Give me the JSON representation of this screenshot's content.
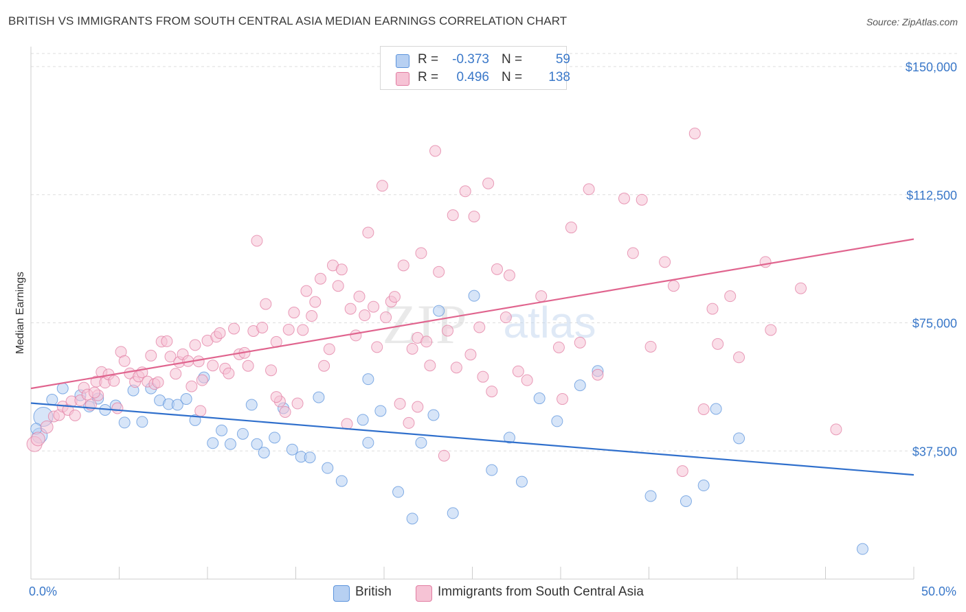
{
  "title": "BRITISH VS IMMIGRANTS FROM SOUTH CENTRAL ASIA MEDIAN EARNINGS CORRELATION CHART",
  "source": "Source: ZipAtlas.com",
  "watermark": {
    "zip": "ZIP",
    "atlas": "atlas"
  },
  "colors": {
    "british": "#5b93dc",
    "british_fill": "#b7d0f2",
    "british_line": "#2f6fcc",
    "immigrants": "#e17ca1",
    "immigrants_fill": "#f6c3d5",
    "immigrants_line": "#e0648e",
    "axis_label": "#3a78c9",
    "grid": "#dddddd"
  },
  "legend": {
    "rows": [
      {
        "r_label": "R =",
        "r_value": "-0.373",
        "n_label": "N =",
        "n_value": "59",
        "series": "british"
      },
      {
        "r_label": "R =",
        "r_value": "0.496",
        "n_label": "N =",
        "n_value": "138",
        "series": "immigrants"
      }
    ]
  },
  "bottom_legend": [
    {
      "label": "British",
      "series": "british"
    },
    {
      "label": "Immigrants from South Central Asia",
      "series": "immigrants"
    }
  ],
  "chart_data": {
    "type": "scatter",
    "title": "BRITISH VS IMMIGRANTS FROM SOUTH CENTRAL ASIA MEDIAN EARNINGS CORRELATION CHART",
    "xlabel": "",
    "ylabel": "Median Earnings",
    "xlim": [
      0,
      50
    ],
    "ylim": [
      0,
      157500
    ],
    "x_tick_labels": [
      "0.0%",
      "50.0%"
    ],
    "x_tick_label_values": [
      0,
      50
    ],
    "x_minor_ticks": [
      0,
      5,
      10,
      15,
      20,
      25,
      30,
      35,
      40,
      45,
      50
    ],
    "y_ticks": [
      37500,
      75000,
      112500,
      150000
    ],
    "y_tick_labels": [
      "$37,500",
      "$75,000",
      "$112,500",
      "$150,000"
    ],
    "grid": true,
    "legend_position": "top-center",
    "series": [
      {
        "name": "British",
        "key": "british",
        "trendline": {
          "x": [
            0,
            50
          ],
          "y": [
            51500,
            30500
          ]
        },
        "points": [
          [
            0.7,
            47500,
            28
          ],
          [
            0.5,
            42000,
            22
          ],
          [
            1.2,
            52500,
            16
          ],
          [
            1.8,
            55800,
            16
          ],
          [
            2.8,
            53800,
            16
          ],
          [
            3.3,
            50500,
            16
          ],
          [
            3.8,
            52800,
            16
          ],
          [
            4.2,
            49500,
            16
          ],
          [
            4.8,
            50800,
            16
          ],
          [
            5.3,
            45800,
            16
          ],
          [
            5.8,
            55200,
            16
          ],
          [
            6.3,
            46000,
            16
          ],
          [
            6.8,
            55800,
            16
          ],
          [
            7.3,
            52300,
            16
          ],
          [
            7.8,
            51200,
            16
          ],
          [
            8.3,
            51000,
            16
          ],
          [
            8.8,
            52700,
            16
          ],
          [
            9.3,
            46500,
            16
          ],
          [
            9.8,
            59000,
            16
          ],
          [
            10.3,
            39800,
            16
          ],
          [
            10.8,
            43500,
            16
          ],
          [
            11.3,
            39500,
            16
          ],
          [
            12.0,
            42500,
            16
          ],
          [
            12.5,
            51000,
            16
          ],
          [
            12.8,
            39500,
            16
          ],
          [
            13.2,
            37000,
            16
          ],
          [
            13.8,
            41400,
            16
          ],
          [
            14.3,
            50000,
            16
          ],
          [
            14.8,
            37900,
            16
          ],
          [
            15.3,
            35800,
            16
          ],
          [
            15.8,
            35600,
            16
          ],
          [
            16.3,
            53200,
            16
          ],
          [
            16.8,
            32500,
            16
          ],
          [
            17.6,
            28700,
            16
          ],
          [
            18.8,
            46600,
            16
          ],
          [
            19.1,
            39900,
            16
          ],
          [
            19.1,
            58500,
            16
          ],
          [
            19.8,
            49200,
            16
          ],
          [
            20.8,
            25500,
            16
          ],
          [
            21.6,
            17700,
            16
          ],
          [
            22.1,
            39900,
            16
          ],
          [
            22.8,
            48000,
            16
          ],
          [
            23.1,
            78500,
            16
          ],
          [
            23.9,
            19300,
            16
          ],
          [
            25.1,
            82900,
            16
          ],
          [
            26.1,
            31900,
            16
          ],
          [
            27.1,
            41400,
            16
          ],
          [
            27.8,
            28500,
            16
          ],
          [
            28.8,
            52900,
            16
          ],
          [
            29.8,
            46200,
            16
          ],
          [
            31.1,
            56700,
            16
          ],
          [
            32.1,
            60900,
            16
          ],
          [
            35.1,
            24300,
            16
          ],
          [
            37.1,
            22800,
            16
          ],
          [
            38.1,
            27400,
            16
          ],
          [
            38.8,
            49800,
            16
          ],
          [
            40.1,
            41200,
            16
          ],
          [
            47.1,
            8800,
            16
          ],
          [
            0.3,
            44000,
            16
          ]
        ]
      },
      {
        "name": "Immigrants from South Central Asia",
        "key": "immigrants",
        "trendline": {
          "x": [
            0,
            50
          ],
          "y": [
            55800,
            99500
          ]
        },
        "points": [
          [
            0.2,
            39500,
            22
          ],
          [
            0.4,
            41000,
            20
          ],
          [
            0.9,
            44500,
            18
          ],
          [
            1.3,
            47600,
            16
          ],
          [
            1.6,
            48000,
            16
          ],
          [
            1.8,
            50500,
            16
          ],
          [
            2.1,
            49500,
            16
          ],
          [
            2.3,
            52000,
            16
          ],
          [
            2.5,
            47900,
            16
          ],
          [
            2.8,
            52300,
            16
          ],
          [
            3.0,
            56000,
            16
          ],
          [
            3.2,
            54000,
            16
          ],
          [
            3.4,
            51000,
            16
          ],
          [
            3.7,
            57800,
            16
          ],
          [
            3.8,
            53800,
            16
          ],
          [
            4.0,
            60600,
            16
          ],
          [
            4.2,
            57500,
            16
          ],
          [
            4.4,
            59900,
            16
          ],
          [
            4.7,
            58000,
            16
          ],
          [
            4.9,
            50000,
            16
          ],
          [
            5.1,
            66500,
            16
          ],
          [
            5.3,
            63800,
            16
          ],
          [
            5.6,
            60200,
            16
          ],
          [
            5.9,
            57700,
            16
          ],
          [
            6.1,
            59300,
            16
          ],
          [
            6.3,
            60500,
            16
          ],
          [
            6.6,
            57800,
            16
          ],
          [
            6.8,
            65400,
            16
          ],
          [
            7.0,
            57100,
            16
          ],
          [
            7.2,
            57600,
            16
          ],
          [
            7.4,
            69500,
            16
          ],
          [
            7.7,
            69600,
            16
          ],
          [
            7.9,
            65100,
            16
          ],
          [
            8.2,
            60100,
            16
          ],
          [
            8.4,
            63500,
            16
          ],
          [
            8.6,
            65800,
            16
          ],
          [
            8.9,
            63800,
            16
          ],
          [
            9.1,
            56400,
            16
          ],
          [
            9.3,
            68500,
            16
          ],
          [
            9.5,
            63700,
            16
          ],
          [
            9.7,
            58200,
            16
          ],
          [
            10.0,
            69800,
            16
          ],
          [
            10.3,
            62500,
            16
          ],
          [
            10.5,
            70900,
            16
          ],
          [
            10.7,
            72000,
            16
          ],
          [
            11.0,
            61600,
            16
          ],
          [
            11.2,
            60200,
            16
          ],
          [
            11.5,
            73300,
            16
          ],
          [
            11.8,
            65800,
            16
          ],
          [
            12.1,
            66200,
            16
          ],
          [
            12.3,
            62400,
            16
          ],
          [
            12.6,
            72600,
            16
          ],
          [
            12.8,
            99000,
            16
          ],
          [
            13.1,
            73600,
            16
          ],
          [
            13.3,
            80500,
            16
          ],
          [
            13.6,
            61100,
            16
          ],
          [
            13.9,
            69400,
            16
          ],
          [
            14.1,
            52000,
            16
          ],
          [
            14.4,
            48900,
            16
          ],
          [
            14.6,
            73000,
            16
          ],
          [
            14.9,
            78000,
            16
          ],
          [
            15.1,
            51400,
            16
          ],
          [
            15.4,
            72900,
            16
          ],
          [
            15.6,
            84300,
            16
          ],
          [
            15.9,
            77000,
            16
          ],
          [
            16.1,
            81100,
            16
          ],
          [
            16.4,
            87900,
            16
          ],
          [
            16.6,
            62400,
            16
          ],
          [
            16.9,
            67300,
            16
          ],
          [
            17.1,
            91800,
            16
          ],
          [
            17.4,
            85800,
            16
          ],
          [
            17.6,
            90600,
            16
          ],
          [
            17.9,
            45400,
            16
          ],
          [
            18.1,
            79100,
            16
          ],
          [
            18.4,
            71300,
            16
          ],
          [
            18.6,
            82700,
            16
          ],
          [
            18.9,
            77200,
            16
          ],
          [
            19.1,
            101400,
            16
          ],
          [
            19.4,
            79700,
            16
          ],
          [
            19.6,
            67900,
            16
          ],
          [
            19.9,
            115100,
            16
          ],
          [
            20.1,
            76600,
            16
          ],
          [
            20.4,
            81200,
            16
          ],
          [
            20.6,
            82600,
            16
          ],
          [
            20.9,
            51300,
            16
          ],
          [
            21.1,
            91800,
            16
          ],
          [
            21.4,
            45700,
            16
          ],
          [
            21.6,
            67400,
            16
          ],
          [
            21.9,
            70600,
            16
          ],
          [
            22.1,
            95400,
            16
          ],
          [
            22.4,
            69500,
            16
          ],
          [
            22.6,
            62500,
            16
          ],
          [
            22.9,
            125300,
            16
          ],
          [
            23.1,
            89900,
            16
          ],
          [
            23.4,
            36100,
            16
          ],
          [
            23.6,
            72700,
            16
          ],
          [
            23.9,
            106500,
            16
          ],
          [
            24.1,
            61900,
            16
          ],
          [
            24.6,
            113500,
            16
          ],
          [
            24.9,
            65700,
            16
          ],
          [
            25.1,
            106100,
            16
          ],
          [
            25.4,
            73700,
            16
          ],
          [
            25.6,
            59200,
            16
          ],
          [
            25.9,
            115800,
            16
          ],
          [
            26.4,
            90700,
            16
          ],
          [
            26.9,
            76600,
            16
          ],
          [
            27.1,
            88900,
            16
          ],
          [
            27.6,
            60800,
            16
          ],
          [
            28.1,
            58200,
            16
          ],
          [
            28.9,
            82800,
            16
          ],
          [
            29.9,
            67800,
            16
          ],
          [
            30.6,
            102900,
            16
          ],
          [
            31.1,
            69200,
            16
          ],
          [
            31.6,
            114100,
            16
          ],
          [
            32.1,
            59800,
            16
          ],
          [
            33.6,
            111400,
            16
          ],
          [
            34.1,
            95400,
            16
          ],
          [
            34.6,
            111000,
            16
          ],
          [
            35.1,
            68000,
            16
          ],
          [
            35.9,
            92800,
            16
          ],
          [
            36.4,
            85800,
            16
          ],
          [
            36.9,
            31600,
            16
          ],
          [
            37.6,
            130400,
            16
          ],
          [
            38.1,
            49700,
            16
          ],
          [
            38.6,
            79100,
            16
          ],
          [
            38.9,
            68800,
            16
          ],
          [
            39.6,
            82800,
            16
          ],
          [
            40.1,
            64900,
            16
          ],
          [
            41.6,
            92800,
            16
          ],
          [
            41.9,
            72900,
            16
          ],
          [
            43.6,
            85100,
            16
          ],
          [
            45.6,
            43800,
            16
          ],
          [
            30.1,
            52700,
            16
          ],
          [
            26.1,
            54900,
            16
          ],
          [
            21.9,
            50400,
            16
          ],
          [
            13.9,
            53300,
            16
          ],
          [
            9.6,
            49200,
            16
          ],
          [
            3.6,
            54600,
            16
          ]
        ]
      }
    ]
  }
}
